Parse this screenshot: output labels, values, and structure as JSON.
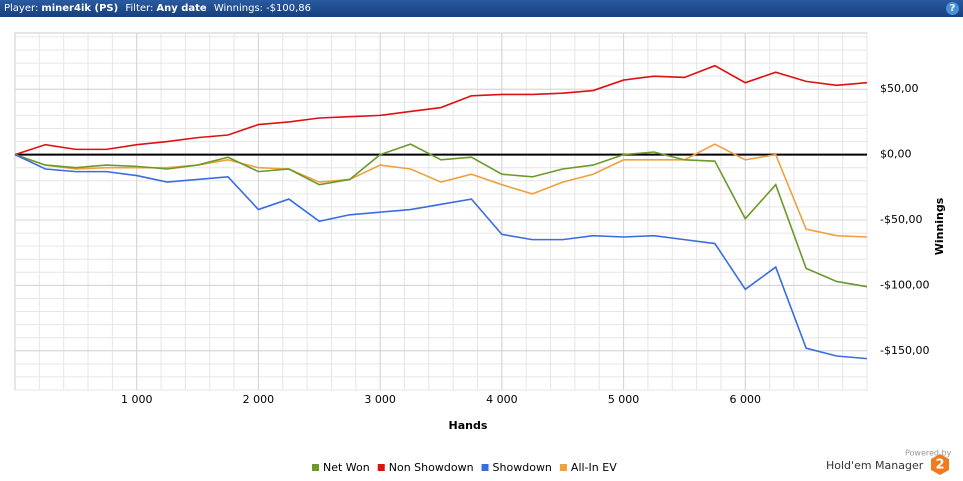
{
  "header": {
    "player_label": "Player:",
    "player": "miner4ik (PS)",
    "filter_label": "Filter:",
    "filter": "Any date",
    "winnings_label": "Winnings:",
    "winnings": "-$100,86"
  },
  "branding": {
    "powered_by": "Powered by",
    "product": "Hold'em Manager",
    "logo": "2"
  },
  "chart_data": {
    "type": "line",
    "xlabel": "Hands",
    "ylabel": "Winnings",
    "grid": true,
    "legend": "bottom",
    "x": [
      0,
      250,
      500,
      750,
      1000,
      1250,
      1500,
      1750,
      2000,
      2250,
      2500,
      2750,
      3000,
      3250,
      3500,
      3750,
      4000,
      4250,
      4500,
      4750,
      5000,
      5250,
      5500,
      5750,
      6000,
      6250,
      6500,
      6750,
      7000
    ],
    "series": [
      {
        "name": "Net Won",
        "color": "#6a9a2a",
        "values": [
          0,
          -8,
          -10,
          -8,
          -9,
          -11,
          -8,
          -2,
          -13,
          -11,
          -23,
          -19,
          0,
          8,
          -4,
          -2,
          -15,
          -17,
          -11,
          -8,
          0,
          2,
          -4,
          -5,
          -49,
          -23,
          -87,
          -97,
          -101
        ]
      },
      {
        "name": "Non Showdown",
        "color": "#e01010",
        "values": [
          0,
          7.6,
          4,
          4,
          7.6,
          10,
          13,
          15,
          23,
          25,
          28,
          29,
          30,
          33,
          36,
          45,
          46,
          46,
          47,
          49,
          57,
          60,
          59,
          68,
          55,
          63,
          56,
          53,
          55
        ]
      },
      {
        "name": "Showdown",
        "color": "#3a6ee0",
        "values": [
          0,
          -11,
          -13,
          -13,
          -16,
          -21,
          -19,
          -17,
          -42,
          -34,
          -51,
          -46,
          -44,
          -42,
          -38,
          -34,
          -61,
          -65,
          -65,
          -62,
          -63,
          -62,
          -65,
          -68,
          -103,
          -86,
          -148,
          -154,
          -156
        ]
      },
      {
        "name": "All-In EV",
        "color": "#f0a040",
        "values": [
          0,
          -8,
          -11,
          -10,
          -10,
          -10,
          -8,
          -4,
          -10,
          -11,
          -21,
          -19,
          -8,
          -11,
          -21,
          -15,
          -23,
          -30,
          -21,
          -15,
          -4,
          -4,
          -4,
          8,
          -4,
          0,
          -57,
          -62,
          -63
        ]
      }
    ],
    "xlim": [
      0,
      7000
    ],
    "ylim": [
      -180,
      93
    ],
    "xticks": [
      {
        "value": 1000,
        "label": "1 000"
      },
      {
        "value": 2000,
        "label": "2 000"
      },
      {
        "value": 3000,
        "label": "3 000"
      },
      {
        "value": 4000,
        "label": "4 000"
      },
      {
        "value": 5000,
        "label": "5 000"
      },
      {
        "value": 6000,
        "label": "6 000"
      }
    ],
    "yticks": [
      {
        "value": -150,
        "label": "-$150,00"
      },
      {
        "value": -100,
        "label": "-$100,00"
      },
      {
        "value": -50,
        "label": "-$50,00"
      },
      {
        "value": 0,
        "label": "$0,00"
      },
      {
        "value": 50,
        "label": "$50,00"
      }
    ]
  }
}
